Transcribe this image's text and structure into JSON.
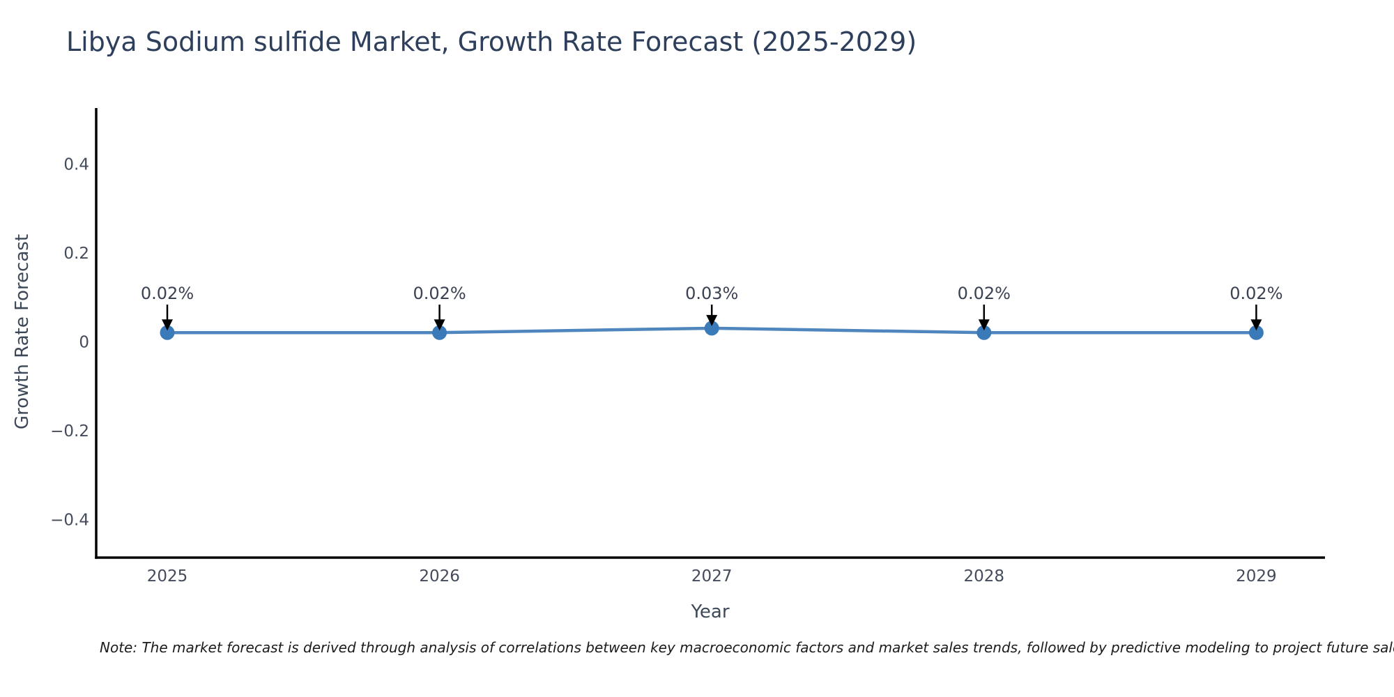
{
  "page": {
    "background": "#ffffff"
  },
  "chart_data": {
    "type": "line",
    "title": "Libya Sodium sulfide Market, Growth Rate Forecast (2025-2029)",
    "xlabel": "Year",
    "ylabel": "Growth Rate Forecast",
    "x": [
      2025,
      2026,
      2027,
      2028,
      2029
    ],
    "x_tick_labels": [
      "2025",
      "2026",
      "2027",
      "2028",
      "2029"
    ],
    "values": [
      0.02,
      0.02,
      0.03,
      0.02,
      0.02
    ],
    "point_labels": [
      "0.02%",
      "0.02%",
      "0.03%",
      "0.02%",
      "0.02%"
    ],
    "y_ticks": [
      0.4,
      0.2,
      0,
      -0.2,
      -0.4
    ],
    "y_tick_labels": [
      "0.4",
      "0.2",
      "0",
      "−0.2",
      "−0.4"
    ],
    "ylim": [
      -0.49,
      0.53
    ],
    "grid": false,
    "legend": "none",
    "annotations_have_arrows": true
  },
  "colors": {
    "line": "#4f86be",
    "marker": "#3a7ab8",
    "spine": "#000000",
    "arrow": "#000000",
    "tick_label": "#444b5a",
    "annotation_label": "#3a4152",
    "title": "#2e3f5c"
  },
  "note": {
    "text": "Note: The market forecast is derived through analysis of correlations between key macroeconomic factors and market sales trends, followed by predictive modeling to project future sales."
  }
}
